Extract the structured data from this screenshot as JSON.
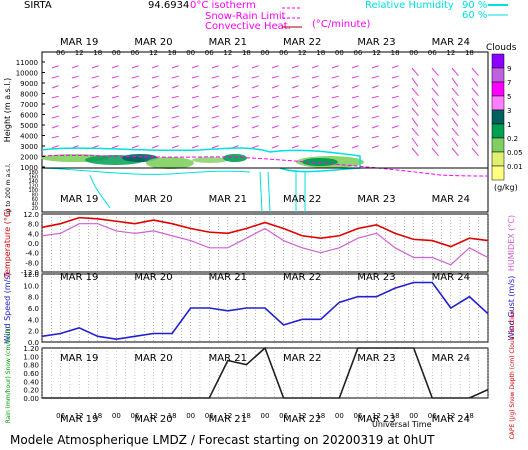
{
  "header": {
    "station": "SIRTA",
    "coords": "94.6934",
    "legend": {
      "isotherm": "0°C isotherm",
      "snow_rain": "Snow-Rain Limit",
      "convective": "Convective Heat.",
      "convective_unit": "(°C/minute)",
      "rh_title": "Relative Humidity",
      "rh_90": "90 %",
      "rh_60": "60 %"
    }
  },
  "days": [
    "MAR 19",
    "MAR 20",
    "MAR 21",
    "MAR 22",
    "MAR 23",
    "MAR 24"
  ],
  "hours": [
    "06",
    "12",
    "18",
    "00",
    "06",
    "12",
    "18",
    "00",
    "06",
    "12",
    "18",
    "00",
    "06",
    "12",
    "18",
    "00",
    "06",
    "12",
    "18",
    "00",
    "06",
    "12",
    "18"
  ],
  "clouds_scale": {
    "title": "Clouds",
    "unit": "(g/kg)",
    "levels": [
      "9",
      "7",
      "5",
      "3",
      "1",
      "0.2",
      "0.05",
      "0.01"
    ],
    "colors": [
      "#8b00ff",
      "#c060e0",
      "#ff00ff",
      "#ff7fff",
      "#006060",
      "#00a050",
      "#7fd060",
      "#e0f070",
      "#ffff80"
    ]
  },
  "colors": {
    "temperature": "#e00000",
    "humidex": "#d060d0",
    "wind_speed": "#2020d0",
    "rain": "#202020",
    "isotherm": "#ff00ff",
    "rh": "#00e0e0",
    "wind_arrow": "#e040e0"
  },
  "footer": {
    "title": "Modele Atmospherique LMDZ / Forecast starting on 20200319 at 0hUT",
    "universal_time": "Universal Time"
  },
  "chart_data": [
    {
      "type": "heatmap",
      "title": "",
      "ylabel": "Height (m a.s.l.)",
      "ylabel2": "Up to 200 m a.s.l.",
      "yticks": [
        "11000",
        "10000",
        "9000",
        "8000",
        "7000",
        "6000",
        "5000",
        "4000",
        "3000",
        "2000",
        "1000",
        "180",
        "160",
        "140",
        "120",
        "100",
        "80",
        "60",
        "40",
        "20"
      ],
      "ylim": [
        0,
        11000
      ]
    },
    {
      "type": "line",
      "ylabel": "Temperature (°C)",
      "ylabel2": "HUMIDEX (°C)",
      "ylim": [
        -12,
        12
      ],
      "yticks": [
        "12.0",
        "8.0",
        "4.0",
        "0.0",
        "-4.0",
        "-8.0",
        "-12.0"
      ],
      "x": [
        0,
        6,
        12,
        18,
        24,
        30,
        36,
        42,
        48,
        54,
        60,
        66,
        72,
        78,
        84,
        90,
        96,
        102,
        108,
        114,
        120,
        126,
        132,
        138,
        144
      ],
      "series": [
        {
          "values": [
            6.5,
            8,
            10.5,
            10,
            9,
            8,
            9.5,
            8,
            6,
            4.5,
            4,
            6,
            8.5,
            6,
            3,
            2,
            3,
            6,
            7.5,
            4,
            1.5,
            1,
            -1.5,
            2,
            1
          ]
        },
        {
          "values": [
            3,
            4,
            8,
            8,
            5,
            4,
            5,
            3,
            1,
            -2,
            -2,
            2,
            6,
            1,
            -2,
            -4,
            -2,
            2,
            4,
            -2,
            -6,
            -6,
            -9,
            -2,
            -6
          ]
        }
      ]
    },
    {
      "type": "line",
      "ylabel": "Wind Speed (m/s)",
      "ylabel2": "Wind Gust (m/s)",
      "ylim": [
        0,
        12
      ],
      "yticks": [
        "12.0",
        "10.0",
        "8.0",
        "6.0",
        "4.0",
        "2.0",
        "0.0"
      ],
      "x": [
        0,
        6,
        12,
        18,
        24,
        30,
        36,
        42,
        48,
        54,
        60,
        66,
        72,
        78,
        84,
        90,
        96,
        102,
        108,
        114,
        120,
        126,
        132,
        138,
        144
      ],
      "series": [
        {
          "values": [
            1,
            1.5,
            2.5,
            1,
            0.5,
            1,
            1.5,
            1.5,
            6,
            6,
            5.5,
            6,
            6,
            3,
            4,
            4,
            7,
            8,
            8,
            9.5,
            10.5,
            10.5,
            6,
            8,
            5
          ]
        }
      ]
    },
    {
      "type": "line",
      "ylabel": "Rain (mm/hour) Snow (cm/hour)",
      "ylabel2": "CAPE (J/g) Snow Depth (cm) Cloud Fraction",
      "ylim": [
        0,
        1.2
      ],
      "yticks": [
        "1.20",
        "1.00",
        "0.80",
        "0.60",
        "0.40",
        "0.20",
        "0.00"
      ],
      "x": [
        0,
        6,
        12,
        18,
        24,
        30,
        36,
        42,
        48,
        54,
        60,
        66,
        72,
        78,
        84,
        90,
        96,
        102,
        108,
        114,
        120,
        126,
        132,
        138,
        144
      ],
      "series": [
        {
          "values": [
            0,
            0,
            0,
            0,
            0,
            0,
            0,
            0,
            0,
            0,
            0.9,
            0.8,
            1.2,
            0,
            0,
            0,
            0,
            1.2,
            1.2,
            1.2,
            1.2,
            0,
            0,
            0,
            0.2
          ]
        }
      ]
    }
  ]
}
